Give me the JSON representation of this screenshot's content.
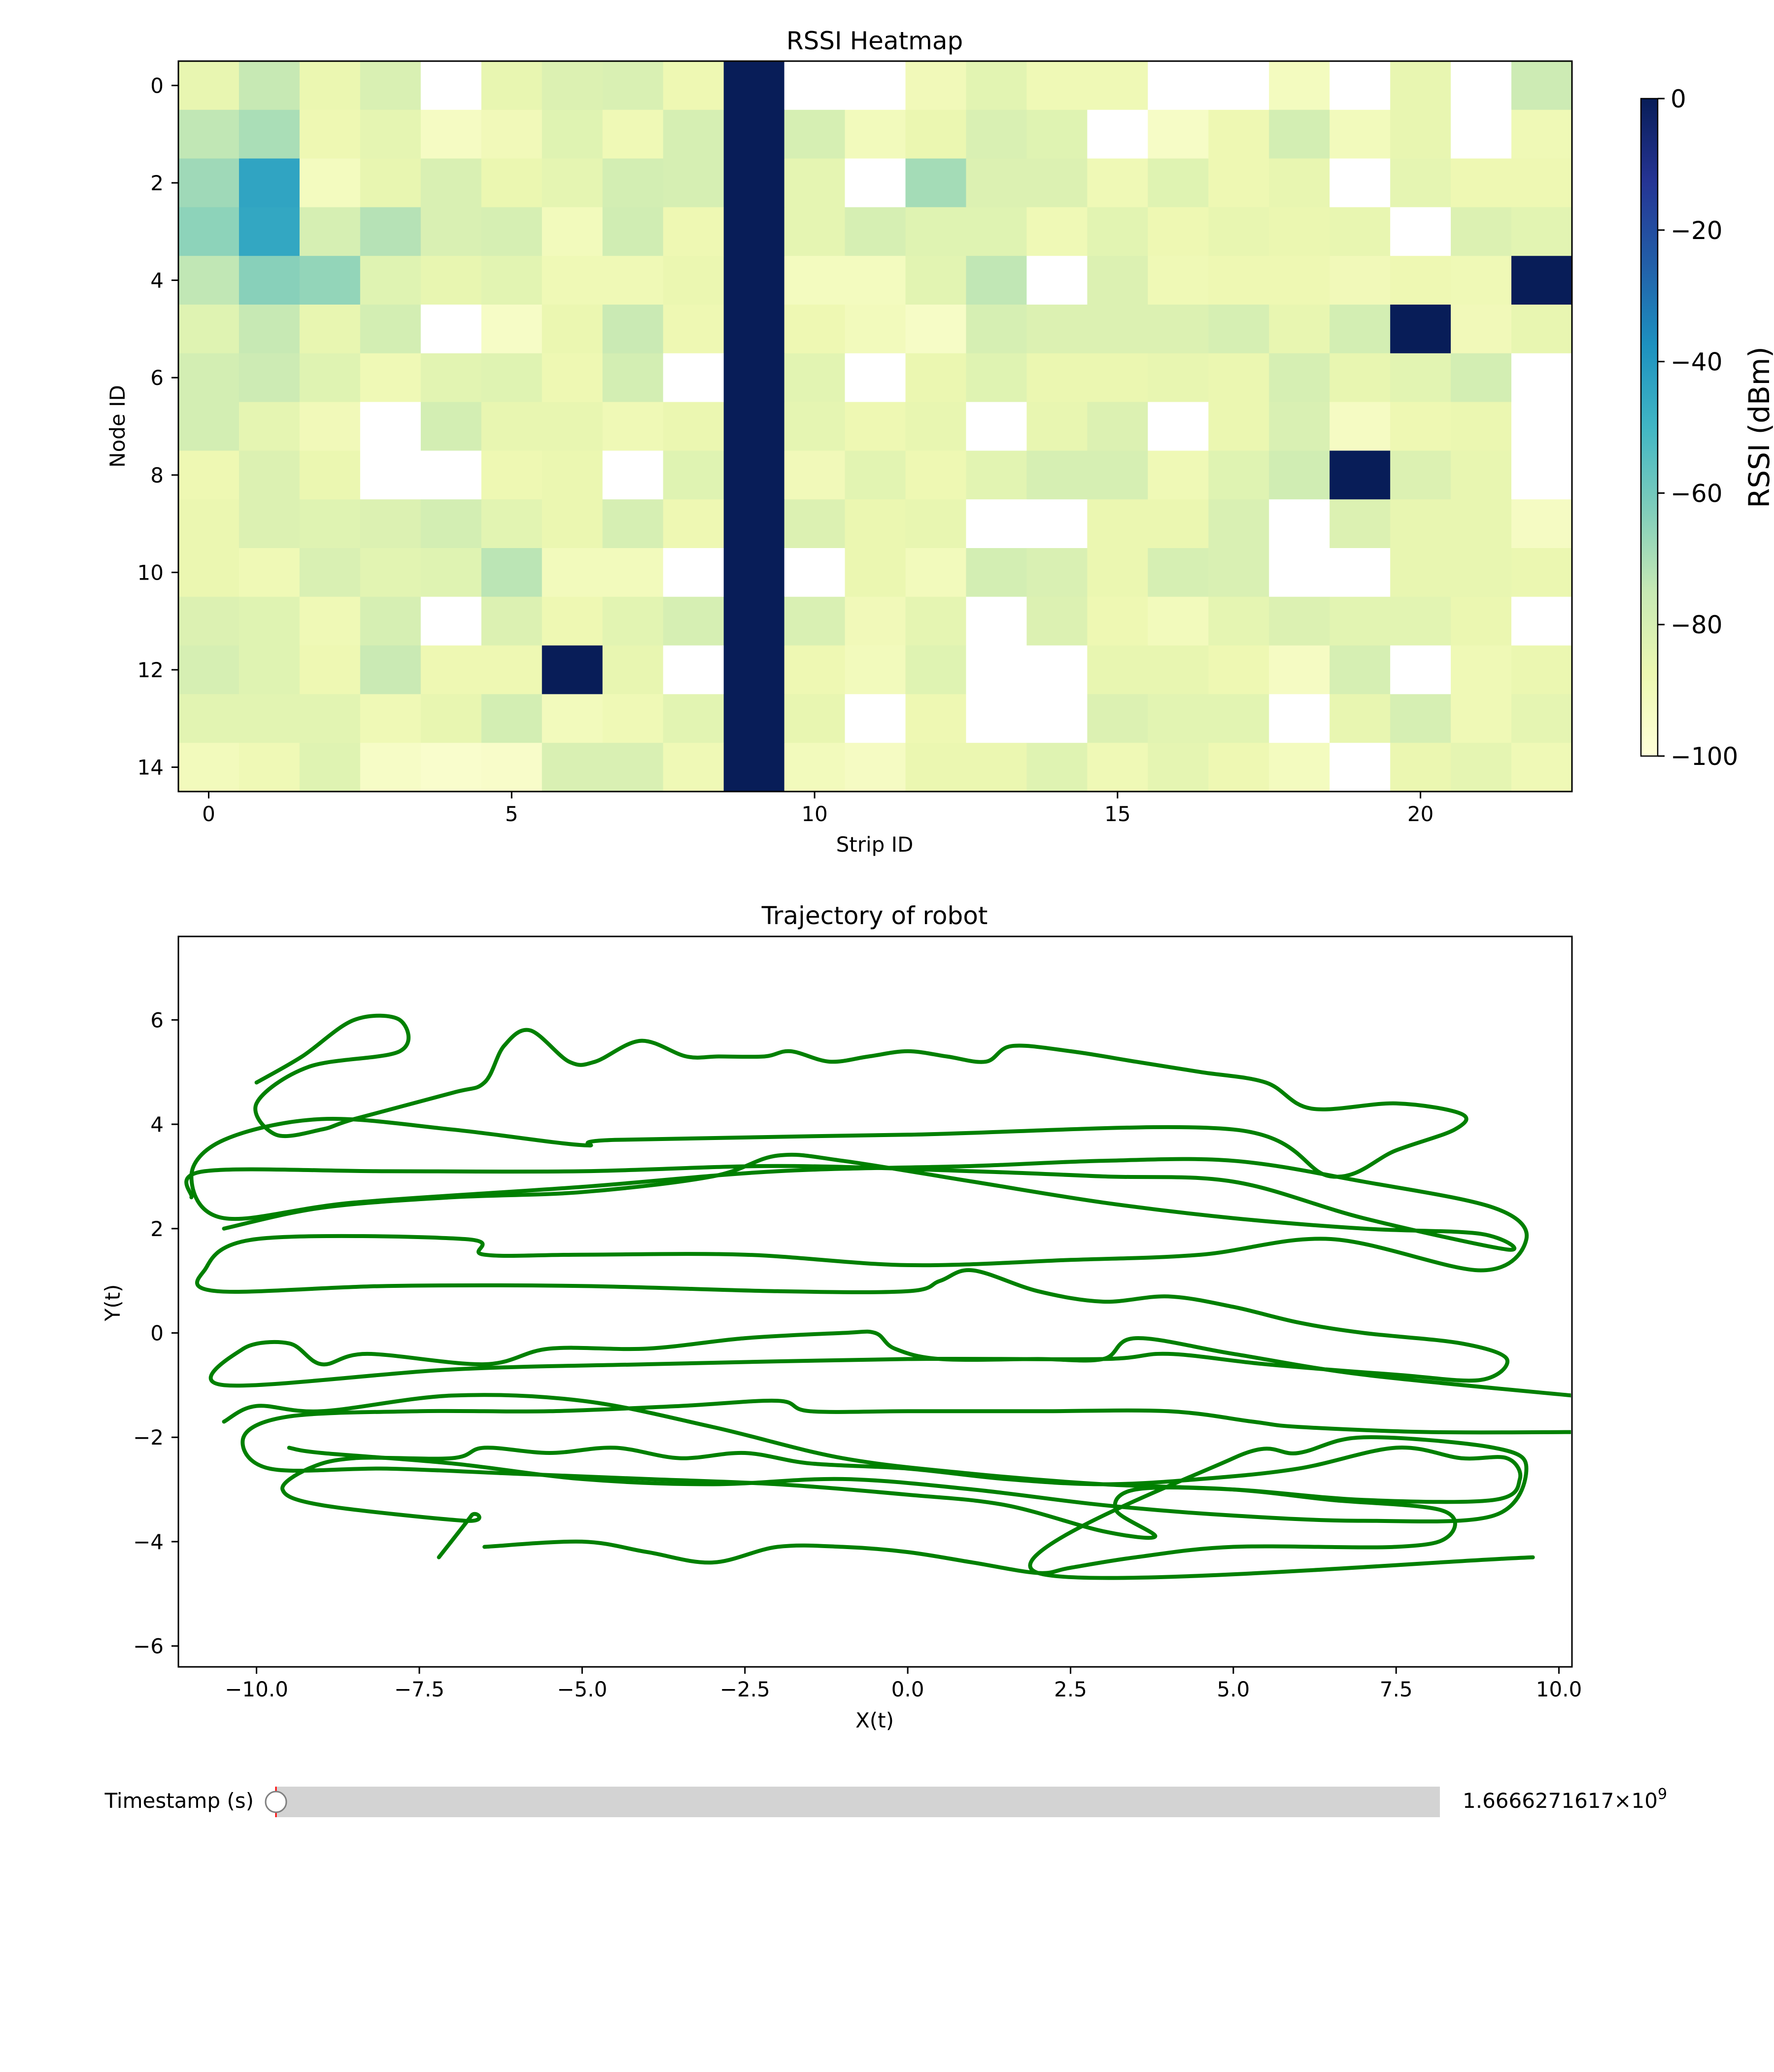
{
  "chart_data": [
    {
      "type": "heatmap",
      "title": "RSSI Heatmap",
      "xlabel": "Strip ID",
      "ylabel": "Node ID",
      "x_ticks": [
        "0",
        "5",
        "10",
        "15",
        "20"
      ],
      "y_ticks": [
        "0",
        "2",
        "4",
        "6",
        "8",
        "10",
        "12",
        "14"
      ],
      "n_cols": 23,
      "n_rows": 15,
      "nan_value": -999,
      "colorbar": {
        "label": "RSSI (dBm)",
        "range": [
          -100,
          0
        ],
        "ticks": [
          "0",
          "−20",
          "−40",
          "−60",
          "−80",
          "−100"
        ],
        "colormap": "YlGnBu"
      },
      "values": [
        [
          -86,
          -75,
          -87,
          -81,
          -999,
          -86,
          -82,
          -81,
          -88,
          0,
          -999,
          -999,
          -90,
          -84,
          -89,
          -89,
          -999,
          -999,
          -92,
          -999,
          -86,
          -999,
          -77
        ],
        [
          -74,
          -70,
          -88,
          -85,
          -93,
          -90,
          -83,
          -89,
          -80,
          0,
          -80,
          -91,
          -87,
          -81,
          -83,
          -999,
          -94,
          -88,
          -79,
          -91,
          -86,
          -999,
          -89
        ],
        [
          -68,
          -44,
          -92,
          -86,
          -81,
          -87,
          -85,
          -79,
          -80,
          0,
          -85,
          -999,
          -69,
          -82,
          -82,
          -89,
          -83,
          -88,
          -86,
          -999,
          -85,
          -88,
          -88
        ],
        [
          -65,
          -45,
          -80,
          -72,
          -81,
          -80,
          -91,
          -78,
          -88,
          0,
          -85,
          -80,
          -83,
          -83,
          -89,
          -84,
          -88,
          -86,
          -87,
          -86,
          -999,
          -82,
          -84
        ],
        [
          -74,
          -64,
          -66,
          -83,
          -86,
          -84,
          -89,
          -89,
          -87,
          0,
          -92,
          -92,
          -84,
          -74,
          -999,
          -82,
          -89,
          -88,
          -88,
          -90,
          -88,
          -89,
          0
        ],
        [
          -83,
          -75,
          -86,
          -79,
          -999,
          -94,
          -87,
          -76,
          -88,
          0,
          -88,
          -91,
          -94,
          -80,
          -82,
          -82,
          -82,
          -80,
          -86,
          -79,
          0,
          -90,
          -86
        ],
        [
          -79,
          -77,
          -83,
          -89,
          -84,
          -83,
          -88,
          -79,
          -999,
          0,
          -84,
          -999,
          -87,
          -83,
          -87,
          -87,
          -86,
          -87,
          -80,
          -86,
          -84,
          -79,
          -999
        ],
        [
          -79,
          -85,
          -90,
          -999,
          -79,
          -86,
          -86,
          -89,
          -87,
          0,
          -85,
          -88,
          -86,
          -999,
          -86,
          -82,
          -999,
          -87,
          -81,
          -93,
          -88,
          -87,
          -999
        ],
        [
          -88,
          -82,
          -87,
          -999,
          -999,
          -88,
          -87,
          -999,
          -83,
          0,
          -90,
          -84,
          -88,
          -84,
          -80,
          -80,
          -89,
          -83,
          -78,
          0,
          -82,
          -86,
          -999
        ],
        [
          -87,
          -82,
          -83,
          -82,
          -79,
          -84,
          -87,
          -80,
          -88,
          0,
          -82,
          -87,
          -86,
          -999,
          -999,
          -87,
          -87,
          -81,
          -999,
          -82,
          -86,
          -86,
          -93
        ],
        [
          -87,
          -89,
          -81,
          -84,
          -83,
          -73,
          -91,
          -91,
          -999,
          0,
          -999,
          -87,
          -91,
          -79,
          -81,
          -87,
          -80,
          -81,
          -999,
          -999,
          -86,
          -86,
          -87
        ],
        [
          -82,
          -83,
          -89,
          -80,
          -999,
          -82,
          -88,
          -84,
          -80,
          0,
          -81,
          -90,
          -85,
          -999,
          -82,
          -88,
          -91,
          -85,
          -82,
          -84,
          -84,
          -87,
          -999
        ],
        [
          -80,
          -83,
          -88,
          -76,
          -88,
          -88,
          0,
          -86,
          -999,
          0,
          -88,
          -91,
          -83,
          -999,
          -999,
          -86,
          -86,
          -88,
          -93,
          -80,
          -999,
          -89,
          -87
        ],
        [
          -84,
          -84,
          -84,
          -89,
          -86,
          -79,
          -91,
          -89,
          -84,
          0,
          -86,
          -999,
          -88,
          -999,
          -999,
          -82,
          -84,
          -84,
          -999,
          -86,
          -80,
          -89,
          -85
        ],
        [
          -91,
          -89,
          -83,
          -94,
          -96,
          -95,
          -81,
          -81,
          -89,
          0,
          -91,
          -93,
          -87,
          -87,
          -83,
          -89,
          -85,
          -88,
          -92,
          -999,
          -87,
          -85,
          -89
        ]
      ]
    },
    {
      "type": "line",
      "title": "Trajectory of robot",
      "xlabel": "X(t)",
      "ylabel": "Y(t)",
      "xlim": [
        -11.2,
        10.2
      ],
      "ylim": [
        -6.4,
        7.6
      ],
      "x_ticks": [
        "−10.0",
        "−7.5",
        "−5.0",
        "−2.5",
        "0.0",
        "2.5",
        "5.0",
        "7.5",
        "10.0"
      ],
      "y_ticks": [
        "−6",
        "−4",
        "−2",
        "0",
        "2",
        "4",
        "6"
      ],
      "grid": false,
      "color": "#008000",
      "points": [
        [
          -10.0,
          4.8
        ],
        [
          -9.3,
          5.3
        ],
        [
          -8.5,
          6.0
        ],
        [
          -7.8,
          6.0
        ],
        [
          -7.8,
          5.4
        ],
        [
          -9.2,
          5.1
        ],
        [
          -10.0,
          4.4
        ],
        [
          -9.7,
          3.8
        ],
        [
          -9.0,
          3.9
        ],
        [
          -8.5,
          4.1
        ],
        [
          -7.0,
          4.6
        ],
        [
          -6.5,
          4.8
        ],
        [
          -6.2,
          5.5
        ],
        [
          -5.8,
          5.8
        ],
        [
          -5.2,
          5.2
        ],
        [
          -4.8,
          5.2
        ],
        [
          -4.1,
          5.6
        ],
        [
          -3.4,
          5.3
        ],
        [
          -2.9,
          5.3
        ],
        [
          -2.2,
          5.3
        ],
        [
          -1.8,
          5.4
        ],
        [
          -1.2,
          5.2
        ],
        [
          -0.6,
          5.3
        ],
        [
          0.0,
          5.4
        ],
        [
          0.6,
          5.3
        ],
        [
          1.2,
          5.2
        ],
        [
          1.6,
          5.5
        ],
        [
          2.5,
          5.4
        ],
        [
          3.5,
          5.2
        ],
        [
          4.5,
          5.0
        ],
        [
          5.5,
          4.8
        ],
        [
          6.2,
          4.3
        ],
        [
          7.5,
          4.4
        ],
        [
          8.5,
          4.2
        ],
        [
          8.4,
          3.9
        ],
        [
          7.5,
          3.5
        ],
        [
          6.5,
          3.0
        ],
        [
          5.0,
          3.9
        ],
        [
          0.0,
          3.8
        ],
        [
          -4.5,
          3.7
        ],
        [
          -5.0,
          3.6
        ],
        [
          -7.0,
          3.9
        ],
        [
          -9.0,
          4.1
        ],
        [
          -10.5,
          3.7
        ],
        [
          -11.0,
          3.0
        ],
        [
          -10.5,
          2.2
        ],
        [
          -8.5,
          2.5
        ],
        [
          -5.0,
          2.8
        ],
        [
          -2.0,
          3.1
        ],
        [
          1.0,
          3.2
        ],
        [
          3.0,
          3.3
        ],
        [
          5.0,
          3.3
        ],
        [
          7.0,
          2.9
        ],
        [
          9.0,
          2.4
        ],
        [
          9.5,
          1.8
        ],
        [
          8.8,
          1.2
        ],
        [
          6.5,
          1.8
        ],
        [
          4.5,
          1.5
        ],
        [
          2.5,
          1.4
        ],
        [
          0.0,
          1.3
        ],
        [
          -2.5,
          1.5
        ],
        [
          -5.0,
          1.5
        ],
        [
          -6.5,
          1.5
        ],
        [
          -6.8,
          1.8
        ],
        [
          -10.0,
          1.8
        ],
        [
          -10.8,
          1.2
        ],
        [
          -10.6,
          0.8
        ],
        [
          -8.0,
          0.9
        ],
        [
          -5.0,
          0.9
        ],
        [
          -2.0,
          0.8
        ],
        [
          0.0,
          0.8
        ],
        [
          0.5,
          1.0
        ],
        [
          1.0,
          1.2
        ],
        [
          2.0,
          0.8
        ],
        [
          3.0,
          0.6
        ],
        [
          4.0,
          0.7
        ],
        [
          5.0,
          0.5
        ],
        [
          6.0,
          0.2
        ],
        [
          7.0,
          0.0
        ],
        [
          8.5,
          -0.2
        ],
        [
          9.2,
          -0.5
        ],
        [
          8.8,
          -0.9
        ],
        [
          7.5,
          -0.8
        ],
        [
          5.5,
          -0.6
        ],
        [
          4.0,
          -0.4
        ],
        [
          3.0,
          -0.5
        ],
        [
          0.0,
          -0.5
        ],
        [
          -4.0,
          -0.6
        ],
        [
          -7.0,
          -0.7
        ],
        [
          -10.5,
          -1.0
        ],
        [
          -10.2,
          -0.3
        ],
        [
          -9.5,
          -0.2
        ],
        [
          -9.0,
          -0.6
        ],
        [
          -8.3,
          -0.4
        ],
        [
          -6.5,
          -0.6
        ],
        [
          -5.5,
          -0.3
        ],
        [
          -4.0,
          -0.3
        ],
        [
          -2.5,
          -0.1
        ],
        [
          -1.0,
          0.0
        ],
        [
          -0.5,
          0.0
        ],
        [
          -0.2,
          -0.3
        ],
        [
          0.5,
          -0.5
        ],
        [
          2.0,
          -0.5
        ],
        [
          3.0,
          -0.5
        ],
        [
          3.5,
          -0.1
        ],
        [
          5.0,
          -0.4
        ],
        [
          7.0,
          -0.8
        ],
        [
          10.2,
          -1.2
        ]
      ],
      "points2": [
        [
          -7.2,
          -4.3
        ],
        [
          -6.7,
          -3.5
        ],
        [
          -6.8,
          -3.6
        ],
        [
          -9.0,
          -3.3
        ],
        [
          -9.6,
          -3.0
        ],
        [
          -9.2,
          -2.6
        ],
        [
          -8.5,
          -2.4
        ],
        [
          -7.0,
          -2.4
        ],
        [
          -6.5,
          -2.2
        ],
        [
          -5.5,
          -2.3
        ],
        [
          -4.5,
          -2.2
        ],
        [
          -3.5,
          -2.4
        ],
        [
          -2.5,
          -2.3
        ],
        [
          -1.5,
          -2.5
        ],
        [
          0.0,
          -2.6
        ],
        [
          1.5,
          -2.8
        ],
        [
          3.0,
          -2.9
        ],
        [
          4.5,
          -2.8
        ],
        [
          6.0,
          -2.6
        ],
        [
          7.5,
          -2.2
        ],
        [
          8.5,
          -2.4
        ],
        [
          9.2,
          -2.4
        ],
        [
          9.4,
          -2.8
        ],
        [
          9.0,
          -3.2
        ],
        [
          7.0,
          -3.2
        ],
        [
          5.0,
          -3.0
        ],
        [
          3.5,
          -3.0
        ],
        [
          3.2,
          -3.4
        ],
        [
          3.8,
          -3.9
        ],
        [
          3.0,
          -3.8
        ],
        [
          1.5,
          -3.3
        ],
        [
          0.0,
          -3.1
        ],
        [
          -2.0,
          -2.9
        ],
        [
          -4.0,
          -2.8
        ],
        [
          -6.0,
          -2.7
        ],
        [
          -8.0,
          -2.6
        ],
        [
          -9.8,
          -2.6
        ],
        [
          -10.2,
          -2.0
        ],
        [
          -9.5,
          -1.6
        ],
        [
          -7.5,
          -1.5
        ],
        [
          -5.5,
          -1.5
        ],
        [
          -3.5,
          -1.4
        ],
        [
          -2.0,
          -1.3
        ],
        [
          -1.5,
          -1.5
        ],
        [
          0.0,
          -1.5
        ],
        [
          2.0,
          -1.5
        ],
        [
          4.0,
          -1.5
        ],
        [
          5.3,
          -1.7
        ],
        [
          6.0,
          -1.8
        ],
        [
          8.0,
          -1.9
        ],
        [
          10.2,
          -1.9
        ]
      ],
      "points3": [
        [
          -10.5,
          -1.7
        ],
        [
          -10.0,
          -1.4
        ],
        [
          -9.0,
          -1.5
        ],
        [
          -7.0,
          -1.2
        ],
        [
          -5.0,
          -1.3
        ],
        [
          -3.0,
          -1.8
        ],
        [
          -1.0,
          -2.4
        ],
        [
          1.0,
          -2.7
        ],
        [
          3.0,
          -2.9
        ],
        [
          5.0,
          -3.0
        ],
        [
          6.5,
          -3.2
        ],
        [
          8.2,
          -3.4
        ],
        [
          8.3,
          -3.9
        ],
        [
          7.5,
          -4.1
        ],
        [
          5.0,
          -4.1
        ],
        [
          3.5,
          -4.3
        ],
        [
          2.5,
          -4.5
        ],
        [
          2.0,
          -4.6
        ],
        [
          1.0,
          -4.4
        ],
        [
          0.0,
          -4.2
        ],
        [
          -1.0,
          -4.1
        ],
        [
          -2.0,
          -4.1
        ],
        [
          -3.0,
          -4.4
        ],
        [
          -4.0,
          -4.2
        ],
        [
          -5.0,
          -4.0
        ],
        [
          -6.5,
          -4.1
        ]
      ],
      "points4": [
        [
          -9.5,
          -2.2
        ],
        [
          -9.0,
          -2.3
        ],
        [
          -7.0,
          -2.5
        ],
        [
          -5.0,
          -2.8
        ],
        [
          -3.0,
          -2.9
        ],
        [
          -1.0,
          -2.8
        ],
        [
          1.0,
          -3.0
        ],
        [
          3.0,
          -3.3
        ],
        [
          5.0,
          -3.5
        ],
        [
          7.0,
          -3.6
        ],
        [
          9.0,
          -3.5
        ],
        [
          9.5,
          -2.6
        ],
        [
          9.0,
          -2.2
        ],
        [
          7.0,
          -2.0
        ],
        [
          6.0,
          -2.3
        ],
        [
          5.0,
          -2.4
        ],
        [
          2.0,
          -4.6
        ],
        [
          9.6,
          -4.3
        ]
      ],
      "points5": [
        [
          -11.0,
          2.6
        ],
        [
          -10.8,
          3.1
        ],
        [
          -8.0,
          3.1
        ],
        [
          -5.0,
          3.1
        ],
        [
          -2.0,
          3.2
        ],
        [
          1.0,
          3.1
        ],
        [
          3.0,
          3.0
        ],
        [
          5.0,
          2.9
        ],
        [
          7.0,
          2.2
        ],
        [
          9.2,
          1.6
        ],
        [
          8.8,
          1.9
        ],
        [
          7.0,
          2.0
        ],
        [
          5.0,
          2.2
        ],
        [
          3.0,
          2.5
        ],
        [
          1.0,
          2.9
        ],
        [
          -1.0,
          3.3
        ],
        [
          -2.0,
          3.4
        ],
        [
          -3.0,
          3.0
        ],
        [
          -5.0,
          2.7
        ],
        [
          -7.0,
          2.6
        ],
        [
          -9.0,
          2.4
        ],
        [
          -10.5,
          2.0
        ]
      ]
    }
  ],
  "slider": {
    "label": "Timestamp (s)",
    "value_mantissa": "1.6666271617×10",
    "value_exponent": "9",
    "position_fraction": 0.0
  }
}
